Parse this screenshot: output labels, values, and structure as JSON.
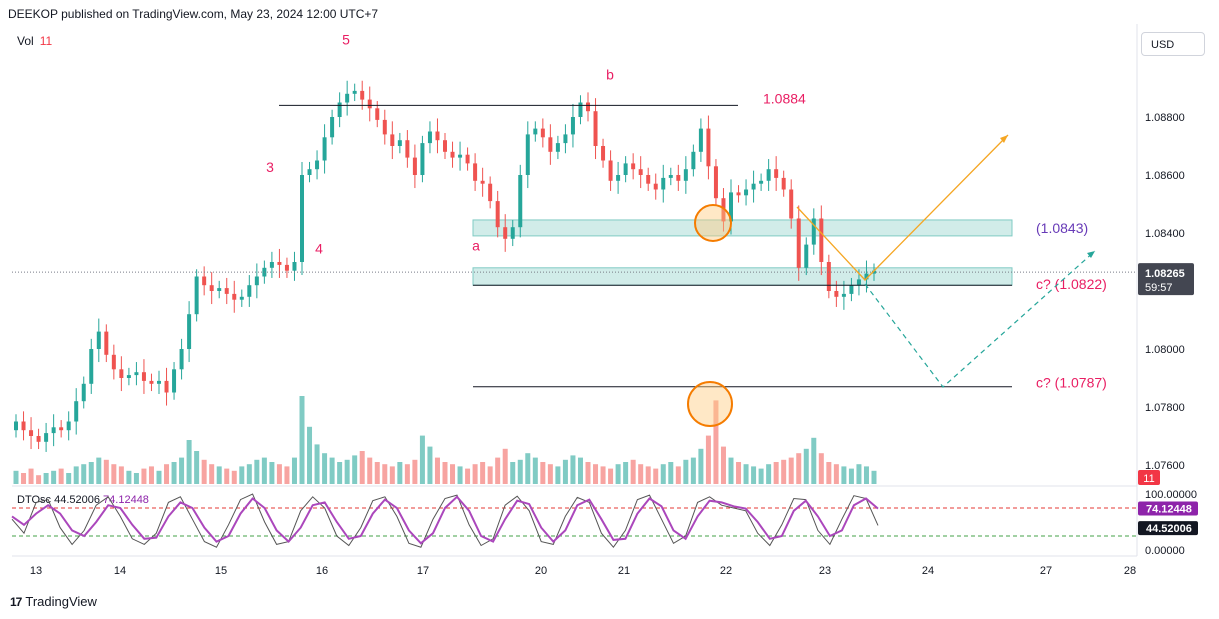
{
  "header": {
    "text": "DEEKOP published on TradingView.com, May 23, 2024 12:00 UTC+7"
  },
  "volume_legend": {
    "label": "Vol",
    "value": "11"
  },
  "currency_button": {
    "label": "USD"
  },
  "footer": {
    "logo": "17",
    "brand": "TradingView"
  },
  "colors": {
    "up": "#26a69a",
    "down": "#ef5350",
    "vol_up": "#80cbc4",
    "vol_down": "#f7a4a1",
    "wave_label": "#e91e63",
    "zone_fill": "#b2dfdb",
    "projection": "#f5a623",
    "projection_dashed": "#26a69a",
    "circle": "#f57c00",
    "dto_k": "#555555",
    "dto_d": "#ab47bc"
  },
  "chart_data": [
    {
      "type": "candlestick",
      "symbol_price": {
        "value": "1.08265",
        "timer": "59:57"
      },
      "yaxis_ticks": [
        "1.08800",
        "1.08600",
        "1.08400",
        "1.08000",
        "1.07800",
        "1.07600"
      ],
      "ylim": [
        1.0756,
        1.0905
      ],
      "xaxis_ticks": [
        "13",
        "14",
        "15",
        "16",
        "17",
        "20",
        "21",
        "22",
        "23",
        "24",
        "27",
        "28"
      ],
      "current_price": 1.08265,
      "levels": [
        {
          "name": "b-high",
          "price": 1.0884,
          "label": "1.0884"
        },
        {
          "name": "zone-1",
          "price_top": 1.08445,
          "price_bottom": 1.0839,
          "label": "(1.0843)"
        },
        {
          "name": "zone-2",
          "price_top": 1.0828,
          "price_bottom": 1.0822,
          "label": "c? (1.0822)"
        },
        {
          "name": "target-low",
          "price": 1.0787,
          "label": "c? (1.0787)"
        }
      ],
      "wave_labels": [
        {
          "text": "5",
          "price": 1.0905
        },
        {
          "text": "b",
          "price": 1.0893
        },
        {
          "text": "3",
          "price": 1.0861
        },
        {
          "text": "4",
          "price": 1.0833
        },
        {
          "text": "a",
          "price": 1.0836
        }
      ],
      "price_path": [
        1.0775,
        1.0772,
        1.077,
        1.0768,
        1.0771,
        1.0773,
        1.0772,
        1.0775,
        1.0782,
        1.0788,
        1.08,
        1.0806,
        1.0798,
        1.0793,
        1.079,
        1.0791,
        1.0792,
        1.0789,
        1.0788,
        1.0789,
        1.0785,
        1.0793,
        1.08,
        1.0812,
        1.0825,
        1.0822,
        1.082,
        1.0821,
        1.0819,
        1.0817,
        1.0818,
        1.0822,
        1.0825,
        1.0828,
        1.083,
        1.0829,
        1.0827,
        1.083,
        1.086,
        1.0862,
        1.0865,
        1.0873,
        1.088,
        1.0885,
        1.0888,
        1.0889,
        1.0886,
        1.0883,
        1.0879,
        1.0874,
        1.087,
        1.0872,
        1.0866,
        1.086,
        1.0871,
        1.0875,
        1.0872,
        1.0868,
        1.0866,
        1.0867,
        1.0864,
        1.0858,
        1.0857,
        1.0851,
        1.0842,
        1.0838,
        1.0842,
        1.086,
        1.0874,
        1.0876,
        1.0873,
        1.0868,
        1.0871,
        1.0874,
        1.088,
        1.0885,
        1.0882,
        1.087,
        1.0865,
        1.0858,
        1.086,
        1.0864,
        1.0862,
        1.086,
        1.0857,
        1.0855,
        1.0859,
        1.086,
        1.0858,
        1.0862,
        1.0868,
        1.0876,
        1.0863,
        1.0852,
        1.0844,
        1.0854,
        1.0853,
        1.0855,
        1.0857,
        1.0858,
        1.0862,
        1.0859,
        1.0855,
        1.0845,
        1.0828,
        1.0836,
        1.0845,
        1.083,
        1.082,
        1.0818,
        1.0819,
        1.0822,
        1.0824,
        1.0826,
        1.0827
      ],
      "volume_path": [
        6,
        5,
        7,
        4,
        5,
        6,
        7,
        5,
        8,
        9,
        10,
        12,
        11,
        9,
        8,
        6,
        5,
        7,
        8,
        6,
        9,
        10,
        12,
        20,
        15,
        11,
        9,
        8,
        7,
        6,
        8,
        9,
        11,
        12,
        10,
        9,
        8,
        12,
        40,
        26,
        18,
        14,
        12,
        10,
        11,
        13,
        15,
        12,
        10,
        9,
        8,
        10,
        9,
        11,
        22,
        17,
        12,
        10,
        9,
        8,
        7,
        9,
        10,
        8,
        12,
        16,
        10,
        11,
        14,
        12,
        10,
        9,
        8,
        11,
        13,
        12,
        10,
        9,
        8,
        7,
        9,
        10,
        11,
        9,
        8,
        7,
        9,
        10,
        8,
        11,
        12,
        16,
        22,
        38,
        17,
        12,
        10,
        9,
        8,
        7,
        9,
        10,
        11,
        12,
        14,
        16,
        21,
        14,
        10,
        9,
        8,
        7,
        9,
        8,
        6
      ]
    },
    {
      "type": "line",
      "title": "DTOsc",
      "legend": {
        "label": "DTOsc",
        "k_value": "44.52006",
        "d_value": "74.12448"
      },
      "yaxis_ticks": [
        "100.00000",
        "0.00000"
      ],
      "ylim": [
        -10,
        110
      ],
      "overbought": 75,
      "oversold": 25,
      "series": [
        {
          "name": "K",
          "values": [
            55,
            30,
            85,
            90,
            40,
            10,
            35,
            80,
            95,
            60,
            20,
            10,
            30,
            85,
            95,
            55,
            15,
            5,
            45,
            90,
            100,
            50,
            10,
            15,
            70,
            95,
            75,
            25,
            8,
            40,
            88,
            95,
            60,
            12,
            5,
            55,
            92,
            98,
            45,
            8,
            20,
            80,
            96,
            70,
            15,
            10,
            60,
            94,
            85,
            30,
            5,
            35,
            90,
            98,
            55,
            12,
            25,
            85,
            95,
            80,
            75,
            70,
            30,
            8,
            45,
            92,
            90,
            35,
            10,
            55,
            97,
            92,
            44
          ]
        },
        {
          "name": "D",
          "values": [
            60,
            45,
            65,
            80,
            65,
            35,
            25,
            50,
            80,
            75,
            45,
            20,
            22,
            60,
            85,
            75,
            40,
            15,
            25,
            65,
            92,
            75,
            35,
            15,
            40,
            80,
            85,
            50,
            20,
            25,
            65,
            90,
            75,
            35,
            12,
            30,
            75,
            95,
            70,
            25,
            15,
            55,
            88,
            82,
            40,
            15,
            35,
            80,
            90,
            55,
            18,
            20,
            65,
            92,
            78,
            35,
            20,
            60,
            88,
            85,
            78,
            74,
            50,
            20,
            25,
            70,
            88,
            60,
            25,
            35,
            80,
            92,
            74
          ]
        }
      ],
      "k_value": 44.52006,
      "d_value": 74.12448
    }
  ]
}
